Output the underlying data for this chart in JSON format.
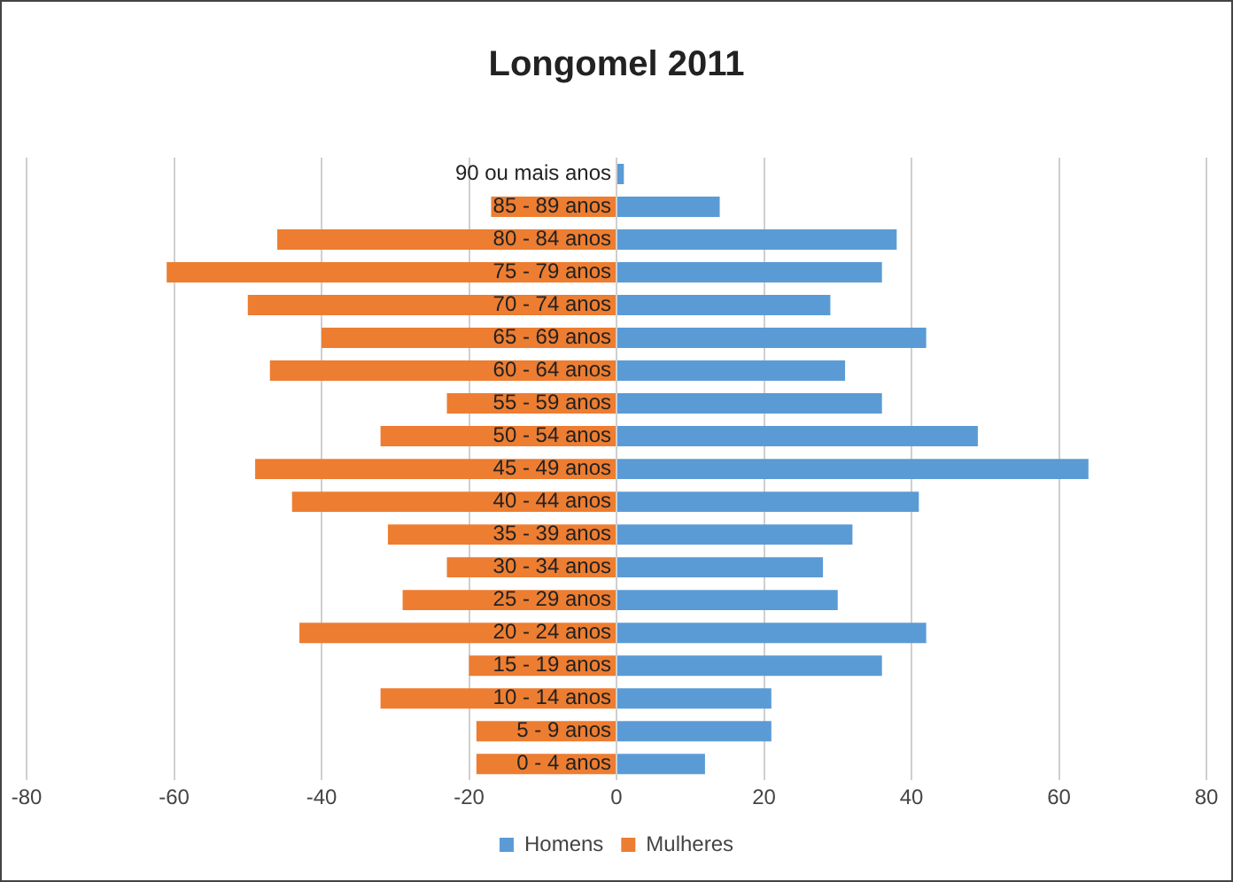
{
  "chart_data": {
    "type": "bar",
    "orientation": "horizontal",
    "stacked": true,
    "title": "Longomel 2011",
    "categories": [
      "90 ou mais anos",
      "85 - 89 anos",
      "80 - 84 anos",
      "75 - 79 anos",
      "70 - 74 anos",
      "65 - 69 anos",
      "60 - 64 anos",
      "55 - 59 anos",
      "50 - 54 anos",
      "45 - 49 anos",
      "40 - 44 anos",
      "35 - 39 anos",
      "30 - 34 anos",
      "25 - 29 anos",
      "20 - 24 anos",
      "15 - 19 anos",
      "10 - 14 anos",
      "5 - 9 anos",
      "0 - 4 anos"
    ],
    "series": [
      {
        "name": "Homens",
        "color": "#5b9bd5",
        "values": [
          1,
          14,
          38,
          36,
          29,
          42,
          31,
          36,
          49,
          64,
          41,
          32,
          28,
          30,
          42,
          36,
          21,
          21,
          12
        ]
      },
      {
        "name": "Mulheres",
        "color": "#ed7d31",
        "values": [
          0,
          -17,
          -46,
          -61,
          -50,
          -40,
          -47,
          -23,
          -32,
          -49,
          -44,
          -31,
          -23,
          -29,
          -43,
          -20,
          -32,
          -19,
          -19
        ]
      }
    ],
    "xlim": [
      -80,
      80
    ],
    "xticks": [
      -80,
      -60,
      -40,
      -20,
      0,
      20,
      40,
      60,
      80
    ],
    "grid": "x",
    "legend": "bottom"
  }
}
